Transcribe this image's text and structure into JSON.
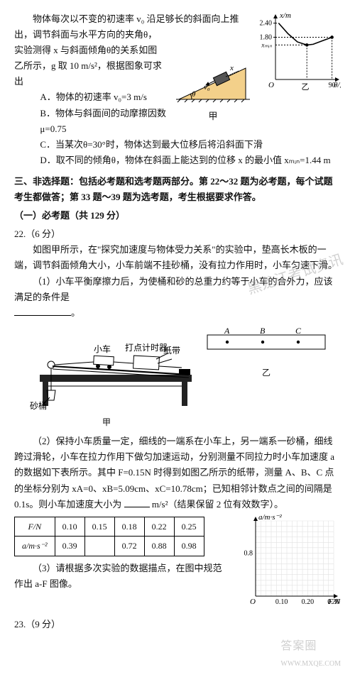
{
  "q21": {
    "intro1": "物体每次以不变的初速率 v₀ 沿足够长的斜面向上推出，调节斜面与水平方向的夹角θ，",
    "intro2": "实验测得 x 与斜面倾角θ的关系如图",
    "intro3": "乙所示，g 取 10 m/s²，根据图象可求出",
    "optA": "A．物体的初速率 v₀=3 m/s",
    "optB": "B．物体与斜面间的动摩擦因数μ=0.75",
    "optC": "C．当某次θ=30°时，物体达到最大位移后将沿斜面下滑",
    "optD": "D．取不同的倾角θ，物体在斜面上能达到的位移 x 的最小值 xₘᵢₙ=1.44 m",
    "incline": {
      "cap": "甲",
      "labels": {
        "x": "x",
        "v0": "v₀",
        "theta": "θ"
      },
      "fill": "#f3d08a",
      "stroke": "#000000"
    },
    "xtheta": {
      "ylabel": "x/m",
      "xlabel": "θ/度",
      "ylim": [
        0,
        2.6
      ],
      "xlim": [
        0,
        95
      ],
      "yticks": [
        {
          "v": 1.8,
          "l": "1.80"
        },
        {
          "v": 2.4,
          "l": "2.40"
        }
      ],
      "xticks": [
        {
          "v": 90,
          "l": "90"
        }
      ],
      "xcap": "乙",
      "xmin_label": "xₘᵢₙ",
      "curve": [
        [
          5,
          2.4
        ],
        [
          20,
          1.95
        ],
        [
          35,
          1.6
        ],
        [
          50,
          1.47
        ],
        [
          60,
          1.5
        ],
        [
          75,
          1.65
        ],
        [
          90,
          1.8
        ]
      ],
      "dots": [
        [
          50,
          1.47
        ],
        [
          90,
          1.8
        ]
      ],
      "dash_color": "#000000",
      "curve_color": "#000000",
      "axis_color": "#000000"
    }
  },
  "sec3": {
    "title": "三、非选择题：包括必考题和选考题两部分。第 22～32 题为必考题，每个试题考生都做答；第 33 题～39 题为选考题，考生根据要求作答。",
    "sub": "（一）必考题（共 129 分）"
  },
  "q22": {
    "num": "22.（6 分）",
    "p1": "如图甲所示，在\"探究加速度与物体受力关系\"的实验中，垫高长木板的一端，调节斜面倾角大小，小车前端不挂砂桶，没有拉力作用时，小车匀速下滑。",
    "p2": "（1）小车平衡摩擦力后，为使桶和砂的总重力约等于小车的合外力，应该满足的条件是",
    "p2tail": "。",
    "apparatus": {
      "labels": {
        "bucket": "砂桶",
        "car": "小车",
        "timer": "打点计时器",
        "tape": "纸带"
      },
      "cap": "甲",
      "table_color": "#333333",
      "top_color": "#111111"
    },
    "tape": {
      "dots_x": [
        30,
        80,
        130
      ],
      "labels": [
        "A",
        "B",
        "C"
      ],
      "cap": "乙",
      "fill": "#ffffff",
      "stroke": "#000000"
    },
    "p3a": "（2）保持小车质量一定，细线的一端系在小车上，另一端系一砂桶，细线跨过滑轮，小车在拉力作用下做匀加速运动，分别测量不同拉力时小车加速度 a 的数据如下表所示。其中 F=0.15N 时得到如图乙所示的纸带，测量 A、B、C 点的坐标分别为 xA=0、xB=5.09cm、xC=10.78cm；已知相邻计数点之间的间隔是 0.1s。则小车加速度大小为",
    "p3b": "m/s²（结果保留 2 位有效数字）。",
    "table": {
      "head": [
        "F/N",
        "0.10",
        "0.15",
        "0.18",
        "0.22",
        "0.25"
      ],
      "row": [
        "a/m·s⁻²",
        "0.39",
        "",
        "0.72",
        "0.88",
        "0.98"
      ]
    },
    "p4": "（3）请根据多次实验的数据描点，在图中规范作出 a-F 图像。",
    "grid": {
      "xlabel": "F/N",
      "ylabel": "a/m·s⁻²",
      "xlim": [
        0,
        0.3
      ],
      "ylim": [
        0,
        1.4
      ],
      "xticks": [
        0.1,
        0.2,
        0.3
      ],
      "yticks": [
        0.8
      ],
      "grid_color": "#e2e2e2",
      "axis_color": "#000000",
      "minor": 5
    }
  },
  "q23": {
    "num": "23.（9 分）"
  },
  "watermark": "黑龙江考试资讯",
  "footer": {
    "logo": "答案圈",
    "url": "WWW.MXQE.COM"
  }
}
